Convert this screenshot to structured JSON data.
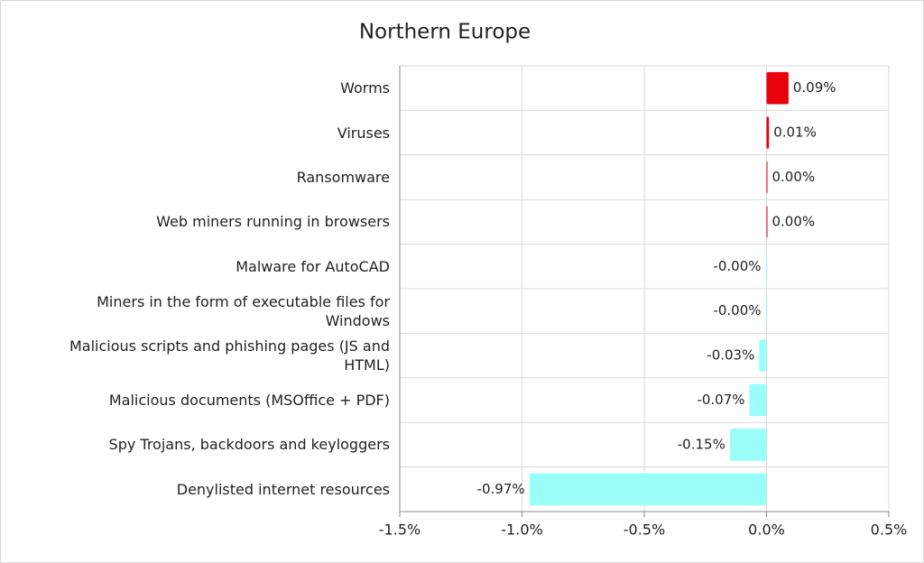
{
  "chart_data": {
    "type": "hbar",
    "title": "Northern Europe",
    "categories": [
      "Worms",
      "Viruses",
      "Ransomware",
      "Web miners running in browsers",
      "Malware for AutoCAD",
      "Miners in the form of executable files for Windows",
      "Malicious scripts and phishing pages (JS and HTML)",
      "Malicious documents (MSOffice + PDF)",
      "Spy Trojans, backdoors and keyloggers",
      "Denylisted internet resources"
    ],
    "values": [
      0.09,
      0.01,
      0.001,
      0.001,
      -0.001,
      -0.001,
      -0.03,
      -0.07,
      -0.15,
      -0.97
    ],
    "value_labels": [
      "0.09%",
      "0.01%",
      "0.00%",
      "0.00%",
      "-0.00%",
      "-0.00%",
      "-0.03%",
      "-0.07%",
      "-0.15%",
      "-0.97%"
    ],
    "positive_color": "#e8000b",
    "negative_color": "#99fff8",
    "xlim": [
      -1.5,
      0.5
    ],
    "xticks": [
      {
        "value": -1.5,
        "label": "-1.5%"
      },
      {
        "value": -1.0,
        "label": "-1.0%"
      },
      {
        "value": -0.5,
        "label": "-0.5%"
      },
      {
        "value": 0.0,
        "label": "0.0%"
      },
      {
        "value": 0.5,
        "label": "0.5%"
      }
    ],
    "grid": true
  }
}
